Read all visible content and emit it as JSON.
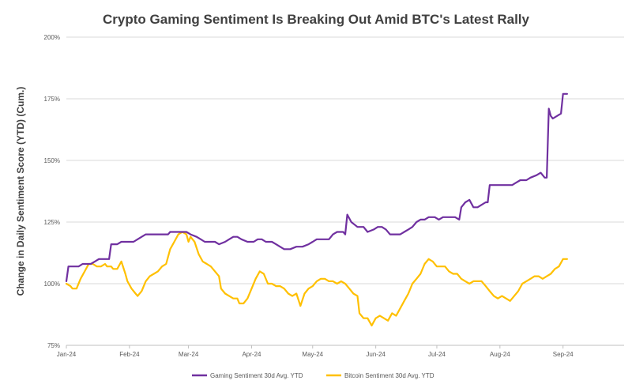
{
  "chart_data": {
    "type": "line",
    "title": "Crypto Gaming Sentiment Is Breaking Out Amid BTC's Latest Rally",
    "xlabel": "",
    "ylabel": "Change in Daily Sentiment Score (YTD) (Cum.)",
    "ylim": [
      75,
      200
    ],
    "yticks": [
      75,
      100,
      125,
      150,
      175,
      200
    ],
    "ytick_labels": [
      "75%",
      "100%",
      "125%",
      "150%",
      "175%",
      "200%"
    ],
    "xlim": [
      0,
      274
    ],
    "xticks": [
      0,
      31,
      60,
      91,
      121,
      152,
      182,
      213,
      244
    ],
    "xtick_labels": [
      "Jan-24",
      "Feb-24",
      "Mar-24",
      "Apr-24",
      "May-24",
      "Jun-24",
      "Jul-24",
      "Aug-24",
      "Sep-24"
    ],
    "grid": "horizontal",
    "legend_position": "bottom",
    "colors": {
      "gaming": "#7030a0",
      "bitcoin": "#ffc000"
    },
    "series": [
      {
        "name": "Gaming Sentiment 30d Avg. YTD",
        "color": "#7030a0",
        "points": [
          [
            0,
            101
          ],
          [
            1,
            107
          ],
          [
            4,
            107
          ],
          [
            6,
            107
          ],
          [
            8,
            108
          ],
          [
            12,
            108
          ],
          [
            14,
            109
          ],
          [
            16,
            110
          ],
          [
            20,
            110
          ],
          [
            21,
            110
          ],
          [
            22,
            116
          ],
          [
            25,
            116
          ],
          [
            27,
            117
          ],
          [
            30,
            117
          ],
          [
            33,
            117
          ],
          [
            35,
            118
          ],
          [
            37,
            119
          ],
          [
            39,
            120
          ],
          [
            41,
            120
          ],
          [
            44,
            120
          ],
          [
            47,
            120
          ],
          [
            50,
            120
          ],
          [
            51,
            121
          ],
          [
            53,
            121
          ],
          [
            56,
            121
          ],
          [
            59,
            121
          ],
          [
            61,
            120
          ],
          [
            64,
            119
          ],
          [
            66,
            118
          ],
          [
            68,
            117
          ],
          [
            70,
            117
          ],
          [
            73,
            117
          ],
          [
            75,
            116
          ],
          [
            78,
            117
          ],
          [
            80,
            118
          ],
          [
            82,
            119
          ],
          [
            84,
            119
          ],
          [
            86,
            118
          ],
          [
            89,
            117
          ],
          [
            92,
            117
          ],
          [
            94,
            118
          ],
          [
            96,
            118
          ],
          [
            98,
            117
          ],
          [
            101,
            117
          ],
          [
            103,
            116
          ],
          [
            105,
            115
          ],
          [
            107,
            114
          ],
          [
            110,
            114
          ],
          [
            113,
            115
          ],
          [
            116,
            115
          ],
          [
            119,
            116
          ],
          [
            121,
            117
          ],
          [
            123,
            118
          ],
          [
            127,
            118
          ],
          [
            129,
            118
          ],
          [
            131,
            120
          ],
          [
            133,
            121
          ],
          [
            136,
            121
          ],
          [
            137,
            120
          ],
          [
            138,
            128
          ],
          [
            140,
            125
          ],
          [
            143,
            123
          ],
          [
            146,
            123
          ],
          [
            148,
            121
          ],
          [
            151,
            122
          ],
          [
            153,
            123
          ],
          [
            155,
            123
          ],
          [
            157,
            122
          ],
          [
            159,
            120
          ],
          [
            162,
            120
          ],
          [
            164,
            120
          ],
          [
            166,
            121
          ],
          [
            168,
            122
          ],
          [
            170,
            123
          ],
          [
            172,
            125
          ],
          [
            174,
            126
          ],
          [
            176,
            126
          ],
          [
            178,
            127
          ],
          [
            181,
            127
          ],
          [
            183,
            126
          ],
          [
            185,
            127
          ],
          [
            188,
            127
          ],
          [
            191,
            127
          ],
          [
            193,
            126
          ],
          [
            194,
            131
          ],
          [
            196,
            133
          ],
          [
            198,
            134
          ],
          [
            200,
            131
          ],
          [
            202,
            131
          ],
          [
            204,
            132
          ],
          [
            206,
            133
          ],
          [
            207,
            133
          ],
          [
            208,
            140
          ],
          [
            212,
            140
          ],
          [
            214,
            140
          ],
          [
            216,
            140
          ],
          [
            219,
            140
          ],
          [
            221,
            141
          ],
          [
            223,
            142
          ],
          [
            226,
            142
          ],
          [
            228,
            143
          ],
          [
            231,
            144
          ],
          [
            233,
            145
          ],
          [
            235,
            143
          ],
          [
            236,
            143
          ],
          [
            237,
            171
          ],
          [
            238,
            168
          ],
          [
            239,
            167
          ],
          [
            241,
            168
          ],
          [
            243,
            169
          ],
          [
            244,
            177
          ],
          [
            246,
            177
          ]
        ]
      },
      {
        "name": "Bitcoin Sentiment 30d Avg. YTD",
        "color": "#ffc000",
        "points": [
          [
            0,
            100
          ],
          [
            2,
            99
          ],
          [
            3,
            98
          ],
          [
            5,
            98
          ],
          [
            7,
            102
          ],
          [
            9,
            105
          ],
          [
            11,
            108
          ],
          [
            13,
            108
          ],
          [
            15,
            107
          ],
          [
            17,
            107
          ],
          [
            19,
            108
          ],
          [
            20,
            107
          ],
          [
            22,
            107
          ],
          [
            23,
            106
          ],
          [
            25,
            106
          ],
          [
            27,
            109
          ],
          [
            29,
            104
          ],
          [
            30,
            101
          ],
          [
            32,
            98
          ],
          [
            34,
            96
          ],
          [
            35,
            95
          ],
          [
            37,
            97
          ],
          [
            39,
            101
          ],
          [
            41,
            103
          ],
          [
            43,
            104
          ],
          [
            45,
            105
          ],
          [
            47,
            107
          ],
          [
            49,
            108
          ],
          [
            51,
            114
          ],
          [
            53,
            117
          ],
          [
            55,
            120
          ],
          [
            57,
            121
          ],
          [
            59,
            120
          ],
          [
            60,
            117
          ],
          [
            61,
            119
          ],
          [
            63,
            117
          ],
          [
            65,
            112
          ],
          [
            67,
            109
          ],
          [
            69,
            108
          ],
          [
            71,
            107
          ],
          [
            73,
            105
          ],
          [
            75,
            103
          ],
          [
            76,
            98
          ],
          [
            78,
            96
          ],
          [
            80,
            95
          ],
          [
            82,
            94
          ],
          [
            84,
            94
          ],
          [
            85,
            92
          ],
          [
            87,
            92
          ],
          [
            89,
            94
          ],
          [
            91,
            98
          ],
          [
            93,
            102
          ],
          [
            95,
            105
          ],
          [
            97,
            104
          ],
          [
            99,
            100
          ],
          [
            101,
            100
          ],
          [
            103,
            99
          ],
          [
            105,
            99
          ],
          [
            107,
            98
          ],
          [
            109,
            96
          ],
          [
            111,
            95
          ],
          [
            113,
            96
          ],
          [
            115,
            91
          ],
          [
            117,
            96
          ],
          [
            119,
            98
          ],
          [
            121,
            99
          ],
          [
            123,
            101
          ],
          [
            125,
            102
          ],
          [
            127,
            102
          ],
          [
            129,
            101
          ],
          [
            131,
            101
          ],
          [
            133,
            100
          ],
          [
            135,
            101
          ],
          [
            137,
            100
          ],
          [
            139,
            98
          ],
          [
            141,
            96
          ],
          [
            143,
            95
          ],
          [
            144,
            88
          ],
          [
            146,
            86
          ],
          [
            148,
            86
          ],
          [
            150,
            83
          ],
          [
            152,
            86
          ],
          [
            154,
            87
          ],
          [
            156,
            86
          ],
          [
            158,
            85
          ],
          [
            160,
            88
          ],
          [
            162,
            87
          ],
          [
            164,
            90
          ],
          [
            166,
            93
          ],
          [
            168,
            96
          ],
          [
            170,
            100
          ],
          [
            172,
            102
          ],
          [
            174,
            104
          ],
          [
            176,
            108
          ],
          [
            178,
            110
          ],
          [
            180,
            109
          ],
          [
            182,
            107
          ],
          [
            184,
            107
          ],
          [
            186,
            107
          ],
          [
            188,
            105
          ],
          [
            190,
            104
          ],
          [
            192,
            104
          ],
          [
            194,
            102
          ],
          [
            196,
            101
          ],
          [
            198,
            100
          ],
          [
            200,
            101
          ],
          [
            202,
            101
          ],
          [
            204,
            101
          ],
          [
            206,
            99
          ],
          [
            208,
            97
          ],
          [
            210,
            95
          ],
          [
            212,
            94
          ],
          [
            214,
            95
          ],
          [
            216,
            94
          ],
          [
            218,
            93
          ],
          [
            220,
            95
          ],
          [
            222,
            97
          ],
          [
            224,
            100
          ],
          [
            226,
            101
          ],
          [
            228,
            102
          ],
          [
            230,
            103
          ],
          [
            232,
            103
          ],
          [
            234,
            102
          ],
          [
            236,
            103
          ],
          [
            238,
            104
          ],
          [
            240,
            106
          ],
          [
            242,
            107
          ],
          [
            244,
            110
          ],
          [
            246,
            110
          ]
        ]
      }
    ]
  }
}
